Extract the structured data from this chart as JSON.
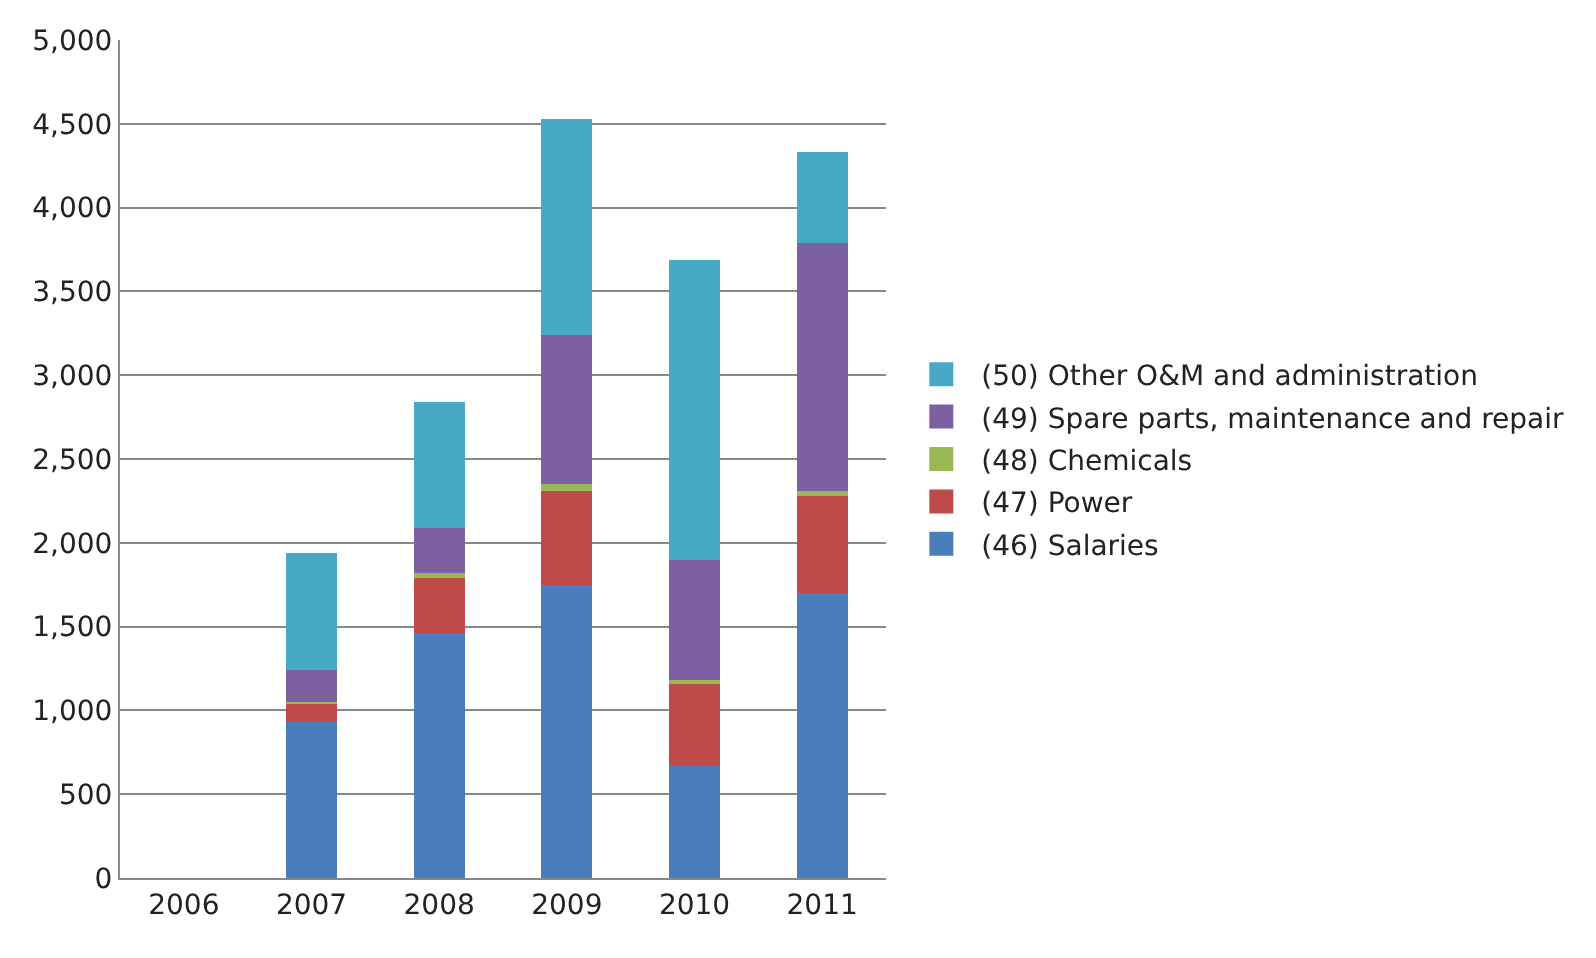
{
  "chart_data": {
    "type": "bar",
    "stacked": true,
    "categories": [
      "2006",
      "2007",
      "2008",
      "2009",
      "2010",
      "2011"
    ],
    "series": [
      {
        "name": "(46) Salaries",
        "color": "#4a7ebb",
        "values": [
          null,
          930,
          1460,
          1750,
          670,
          1700
        ]
      },
      {
        "name": "(47) Power",
        "color": "#be4b48",
        "values": [
          null,
          110,
          330,
          560,
          490,
          590
        ]
      },
      {
        "name": "(48) Chemicals",
        "color": "#98b954",
        "values": [
          null,
          10,
          30,
          40,
          20,
          20
        ]
      },
      {
        "name": "(49) Spare parts, maintenance and repair",
        "color": "#7d60a0",
        "values": [
          null,
          190,
          270,
          890,
          720,
          1480
        ]
      },
      {
        "name": "(50) Other O&M and administration",
        "color": "#46aac5",
        "values": [
          null,
          700,
          750,
          1290,
          1790,
          540
        ]
      }
    ],
    "ylim": [
      0,
      5000
    ],
    "yticks": [
      {
        "value": 0,
        "label": "0"
      },
      {
        "value": 500,
        "label": "500"
      },
      {
        "value": 1000,
        "label": "1,000"
      },
      {
        "value": 1500,
        "label": "1,500"
      },
      {
        "value": 2000,
        "label": "2,000"
      },
      {
        "value": 2500,
        "label": "2,500"
      },
      {
        "value": 3000,
        "label": "3,000"
      },
      {
        "value": 3500,
        "label": "3,500"
      },
      {
        "value": 4000,
        "label": "4,000"
      },
      {
        "value": 4500,
        "label": "4,500"
      },
      {
        "value": 5000,
        "label": "5,000"
      }
    ],
    "grid": "y",
    "legend": "right"
  }
}
